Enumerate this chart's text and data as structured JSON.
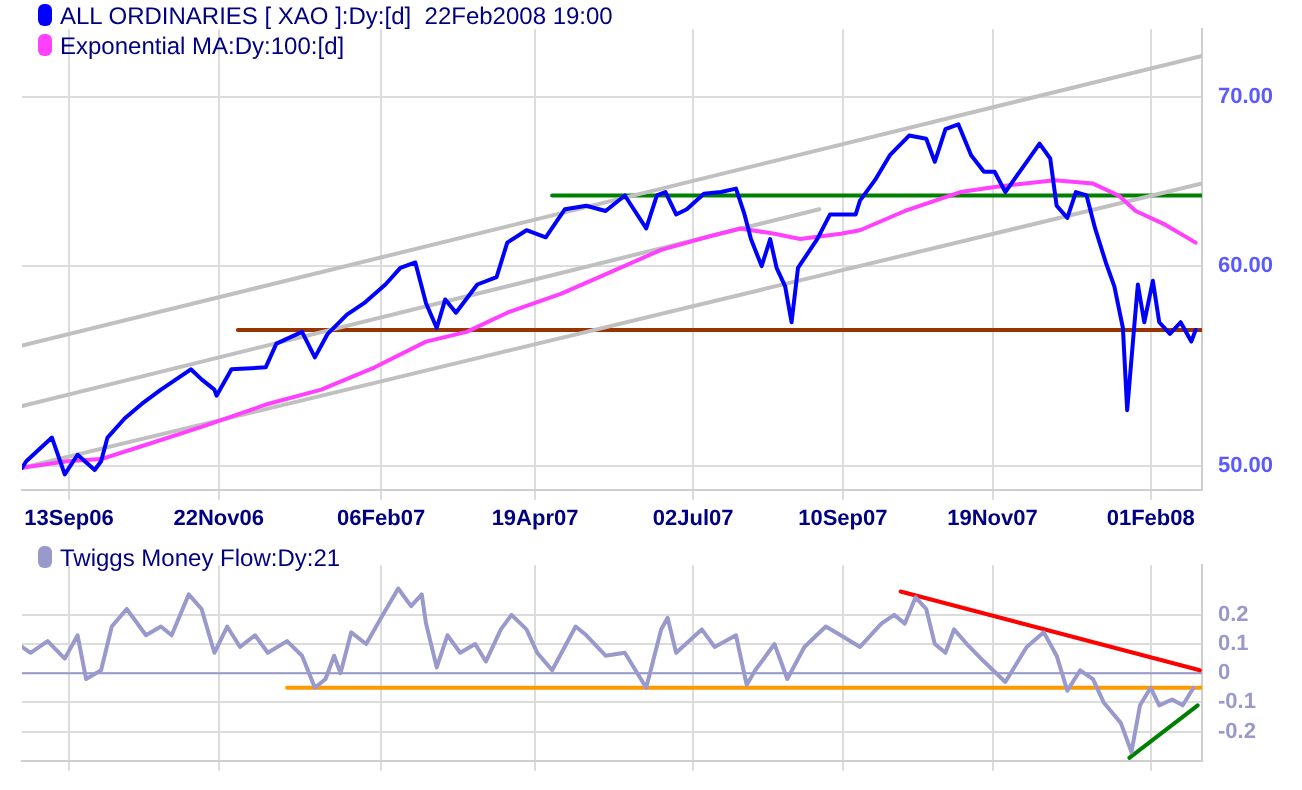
{
  "chart_data": [
    {
      "type": "line",
      "xlim": [
        "2006-08-22",
        "2008-02-25"
      ],
      "ylim": [
        48.9,
        74.5
      ],
      "log": "y",
      "grid": true,
      "legend": "top left",
      "marker": "none",
      "xticks": [
        {
          "value": "2006-09-13",
          "label": "13Sep06"
        },
        {
          "value": "2006-11-22",
          "label": "22Nov06"
        },
        {
          "value": "2007-02-06",
          "label": "06Feb07"
        },
        {
          "value": "2007-04-19",
          "label": "19Apr07"
        },
        {
          "value": "2007-07-02",
          "label": "02Jul07"
        },
        {
          "value": "2007-09-10",
          "label": "10Sep07"
        },
        {
          "value": "2007-11-19",
          "label": "19Nov07"
        },
        {
          "value": "2008-02-01",
          "label": "01Feb08"
        }
      ],
      "yticks": [
        {
          "value": 50,
          "label": "50.00"
        },
        {
          "value": 60,
          "label": "60.00"
        },
        {
          "value": 70,
          "label": "70.00"
        }
      ],
      "series": [
        {
          "name": "ALL ORDINARIES [ XAO ]:Dy:[d]  22Feb2008 19:00",
          "color": "#0000ff",
          "x": [
            "2006-08-22",
            "2006-08-24",
            "2006-09-05",
            "2006-09-11",
            "2006-09-17",
            "2006-09-25",
            "2006-09-28",
            "2006-10-01",
            "2006-10-09",
            "2006-10-17",
            "2006-10-26",
            "2006-11-09",
            "2006-11-14",
            "2006-11-20",
            "2006-11-21",
            "2006-11-28",
            "2006-12-14",
            "2006-12-19",
            "2006-12-31",
            "2007-01-06",
            "2007-01-12",
            "2007-01-21",
            "2007-01-29",
            "2007-02-08",
            "2007-02-15",
            "2007-02-22",
            "2007-02-27",
            "2007-03-04",
            "2007-03-08",
            "2007-03-13",
            "2007-03-23",
            "2007-04-01",
            "2007-04-06",
            "2007-04-15",
            "2007-04-24",
            "2007-05-03",
            "2007-05-13",
            "2007-05-22",
            "2007-05-31",
            "2007-06-10",
            "2007-06-15",
            "2007-06-19",
            "2007-06-24",
            "2007-06-29",
            "2007-07-07",
            "2007-07-15",
            "2007-07-22",
            "2007-07-26",
            "2007-07-29",
            "2007-08-03",
            "2007-08-07",
            "2007-08-10",
            "2007-08-14",
            "2007-08-17",
            "2007-08-20",
            "2007-08-29",
            "2007-09-04",
            "2007-09-16",
            "2007-09-18",
            "2007-09-25",
            "2007-10-02",
            "2007-10-11",
            "2007-10-19",
            "2007-10-23",
            "2007-10-28",
            "2007-11-03",
            "2007-11-09",
            "2007-11-15",
            "2007-11-20",
            "2007-11-25",
            "2007-11-30",
            "2007-12-05",
            "2007-12-11",
            "2007-12-16",
            "2007-12-19",
            "2007-12-24",
            "2007-12-28",
            "2008-01-02",
            "2008-01-06",
            "2008-01-11",
            "2008-01-15",
            "2008-01-19",
            "2008-01-21",
            "2008-01-24",
            "2008-01-26",
            "2008-01-29",
            "2008-02-02",
            "2008-02-05",
            "2008-02-10",
            "2008-02-15",
            "2008-02-18",
            "2008-02-20",
            "2008-02-22"
          ],
          "values": [
            49.9,
            50.2,
            51.3,
            49.6,
            50.5,
            49.8,
            50.2,
            51.3,
            52.2,
            52.9,
            53.6,
            54.6,
            54.1,
            53.6,
            53.3,
            54.6,
            54.7,
            55.9,
            56.5,
            55.2,
            56.4,
            57.4,
            58.0,
            59.0,
            59.9,
            60.2,
            58.0,
            56.7,
            58.2,
            57.5,
            59.0,
            59.4,
            61.3,
            62.0,
            61.6,
            63.2,
            63.4,
            63.1,
            64.0,
            62.1,
            64.0,
            64.2,
            62.9,
            63.2,
            64.1,
            64.2,
            64.4,
            62.9,
            61.5,
            60.0,
            61.5,
            59.9,
            58.9,
            57.0,
            59.9,
            61.5,
            62.9,
            62.9,
            63.7,
            64.9,
            66.4,
            67.6,
            67.4,
            66.0,
            68.0,
            68.3,
            66.4,
            65.4,
            65.4,
            64.2,
            65.1,
            66.0,
            67.1,
            66.2,
            63.4,
            62.7,
            64.2,
            64.0,
            62.1,
            60.2,
            58.9,
            56.7,
            52.6,
            56.4,
            59.0,
            57.0,
            59.2,
            57.0,
            56.4,
            57.0,
            56.4,
            56.0,
            56.6
          ]
        },
        {
          "name": "Exponential MA:Dy:100:[d]",
          "color": "#ff40ff",
          "x": [
            "2006-08-22",
            "2006-09-12",
            "2006-09-28",
            "2006-10-14",
            "2006-11-14",
            "2006-12-15",
            "2007-01-09",
            "2007-02-03",
            "2007-02-27",
            "2007-03-18",
            "2007-04-06",
            "2007-05-01",
            "2007-05-19",
            "2007-06-17",
            "2007-07-08",
            "2007-07-24",
            "2007-08-09",
            "2007-08-21",
            "2007-09-09",
            "2007-09-18",
            "2007-10-09",
            "2007-11-04",
            "2007-11-20",
            "2007-12-18",
            "2008-01-05",
            "2008-01-17",
            "2008-01-25",
            "2008-02-08",
            "2008-02-22"
          ],
          "values": [
            49.9,
            50.2,
            50.3,
            50.8,
            51.8,
            52.9,
            53.6,
            54.7,
            56.0,
            56.5,
            57.5,
            58.5,
            59.4,
            60.9,
            61.6,
            62.1,
            61.8,
            61.5,
            61.8,
            62.0,
            63.1,
            64.2,
            64.5,
            64.9,
            64.7,
            64.0,
            63.1,
            62.3,
            61.3
          ]
        },
        {
          "color": "#c0c0c0",
          "x": [
            "2006-08-22",
            "2008-02-25"
          ],
          "values": [
            55.8,
            72.7
          ]
        },
        {
          "color": "#c0c0c0",
          "x": [
            "2006-08-22",
            "2007-08-30"
          ],
          "values": [
            52.8,
            63.2
          ]
        },
        {
          "color": "#c0c0c0",
          "x": [
            "2006-08-22",
            "2008-02-25"
          ],
          "values": [
            49.9,
            64.7
          ]
        },
        {
          "color": "#993300",
          "x": [
            "2006-12-01",
            "2008-02-25"
          ],
          "values": [
            56.6,
            56.6
          ]
        },
        {
          "color": "#008000",
          "x": [
            "2007-04-27",
            "2008-02-25"
          ],
          "values": [
            64.0,
            64.0
          ]
        }
      ]
    },
    {
      "type": "line",
      "xlim": [
        "2006-08-22",
        "2008-02-25"
      ],
      "ylim": [
        -0.3,
        0.37
      ],
      "grid": true,
      "legend": "top left",
      "marker": "none",
      "tick_labels": "y",
      "xticks": [
        {
          "value": "2006-09-13",
          "label": null
        },
        {
          "value": "2006-11-22",
          "label": null
        },
        {
          "value": "2007-02-06",
          "label": null
        },
        {
          "value": "2007-04-19",
          "label": null
        },
        {
          "value": "2007-07-02",
          "label": null
        },
        {
          "value": "2007-09-10",
          "label": null
        },
        {
          "value": "2007-11-19",
          "label": null
        },
        {
          "value": "2008-02-01",
          "label": null
        }
      ],
      "yticks": [
        -0.2,
        -0.1,
        0,
        0.1,
        0.2
      ],
      "ref_lines": [
        {
          "axis": "y",
          "value": 0,
          "color": "#9999cc"
        }
      ],
      "series": [
        {
          "name": "Twiggs Money Flow:Dy:21",
          "color": "#9999cc",
          "x": [
            "2006-08-22",
            "2006-08-26",
            "2006-09-03",
            "2006-09-11",
            "2006-09-17",
            "2006-09-21",
            "2006-09-28",
            "2006-10-03",
            "2006-10-10",
            "2006-10-19",
            "2006-10-26",
            "2006-10-31",
            "2006-11-08",
            "2006-11-14",
            "2006-11-20",
            "2006-11-26",
            "2006-12-02",
            "2006-12-09",
            "2006-12-15",
            "2006-12-24",
            "2006-12-31",
            "2007-01-06",
            "2007-01-11",
            "2007-01-15",
            "2007-01-18",
            "2007-01-23",
            "2007-01-30",
            "2007-02-06",
            "2007-02-14",
            "2007-02-20",
            "2007-02-25",
            "2007-02-27",
            "2007-03-04",
            "2007-03-09",
            "2007-03-15",
            "2007-03-22",
            "2007-03-27",
            "2007-04-03",
            "2007-04-08",
            "2007-04-15",
            "2007-04-20",
            "2007-04-27",
            "2007-05-08",
            "2007-05-13",
            "2007-05-22",
            "2007-05-31",
            "2007-06-10",
            "2007-06-17",
            "2007-06-20",
            "2007-06-24",
            "2007-07-06",
            "2007-07-12",
            "2007-07-22",
            "2007-07-27",
            "2007-07-31",
            "2007-08-09",
            "2007-08-15",
            "2007-08-23",
            "2007-09-02",
            "2007-09-09",
            "2007-09-18",
            "2007-09-28",
            "2007-10-04",
            "2007-10-09",
            "2007-10-14",
            "2007-10-19",
            "2007-10-23",
            "2007-10-28",
            "2007-11-01",
            "2007-11-07",
            "2007-11-15",
            "2007-11-25",
            "2007-11-30",
            "2007-12-05",
            "2007-12-13",
            "2007-12-19",
            "2007-12-24",
            "2007-12-30",
            "2008-01-05",
            "2008-01-10",
            "2008-01-18",
            "2008-01-23",
            "2008-01-27",
            "2008-02-01",
            "2008-02-05",
            "2008-02-11",
            "2008-02-16",
            "2008-02-21"
          ],
          "values": [
            0.09,
            0.07,
            0.11,
            0.05,
            0.13,
            -0.02,
            0.01,
            0.16,
            0.22,
            0.13,
            0.16,
            0.13,
            0.27,
            0.22,
            0.07,
            0.16,
            0.09,
            0.13,
            0.07,
            0.11,
            0.06,
            -0.05,
            -0.02,
            0.06,
            0,
            0.14,
            0.1,
            0.19,
            0.29,
            0.23,
            0.27,
            0.17,
            0.02,
            0.13,
            0.07,
            0.1,
            0.04,
            0.15,
            0.2,
            0.15,
            0.07,
            0.01,
            0.16,
            0.13,
            0.06,
            0.07,
            -0.05,
            0.15,
            0.19,
            0.07,
            0.15,
            0.09,
            0.13,
            -0.04,
            0.01,
            0.1,
            -0.02,
            0.09,
            0.16,
            0.13,
            0.09,
            0.17,
            0.2,
            0.17,
            0.26,
            0.22,
            0.1,
            0.07,
            0.15,
            0.1,
            0.04,
            -0.03,
            0.03,
            0.09,
            0.14,
            0.06,
            -0.06,
            0.01,
            -0.02,
            -0.1,
            -0.17,
            -0.27,
            -0.11,
            -0.05,
            -0.11,
            -0.09,
            -0.11,
            -0.05
          ]
        },
        {
          "color": "#ff9900",
          "x": [
            "2006-12-24",
            "2008-02-25"
          ],
          "values": [
            -0.05,
            -0.05
          ]
        },
        {
          "color": "#ff0000",
          "x": [
            "2007-10-07",
            "2008-02-24"
          ],
          "values": [
            0.28,
            0.01
          ]
        },
        {
          "color": "#008000",
          "x": [
            "2008-01-22",
            "2008-02-23"
          ],
          "values": [
            -0.29,
            -0.11
          ]
        }
      ]
    }
  ]
}
